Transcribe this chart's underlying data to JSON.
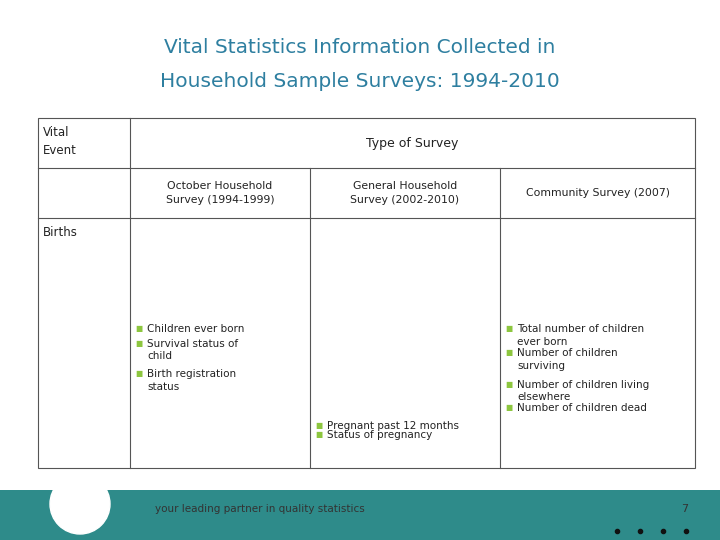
{
  "title_line1": "Vital Statistics Information Collected in",
  "title_line2": "Household Sample Surveys: 1994-2010",
  "title_color": "#2e7fa0",
  "bg_color": "#ffffff",
  "footer_bar_color": "#2e8b8a",
  "footer_text": "your leading partner in quality statistics",
  "page_number": "7",
  "bullet_color": "#8dc63f",
  "col1_items": [
    [
      "Children ever born",
      0.595
    ],
    [
      "Survival status of\nchild",
      0.535
    ],
    [
      "Birth registration\nstatus",
      0.41
    ]
  ],
  "col2_items": [
    [
      "Pregnant past 12 months",
      0.195
    ],
    [
      "Status of pregnancy",
      0.155
    ]
  ],
  "col3_items": [
    [
      "Total number of children\never born",
      0.595
    ],
    [
      "Number of children\nsurviving",
      0.495
    ],
    [
      "Number of children living\nelsewhere",
      0.365
    ],
    [
      "Number of children dead",
      0.27
    ]
  ]
}
